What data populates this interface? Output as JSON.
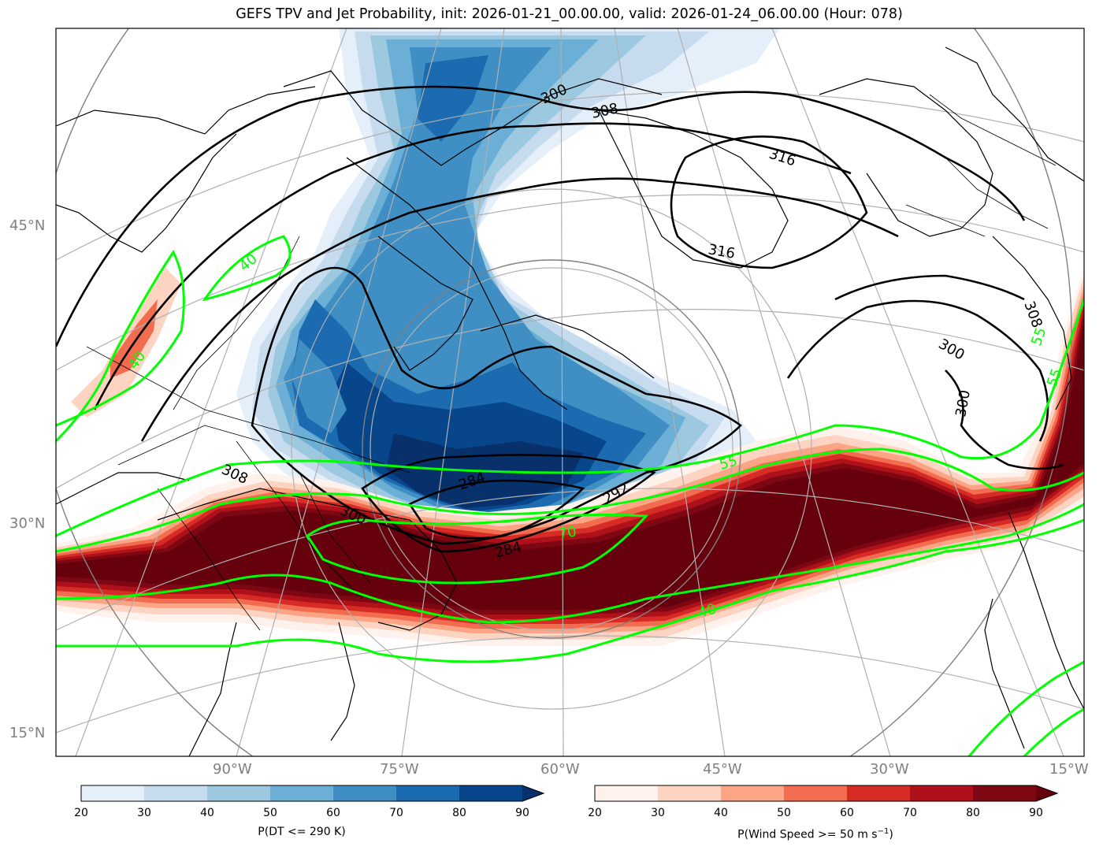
{
  "title": "GEFS TPV and Jet Probability, init: 2026-01-21_00.00.00, valid: 2026-01-24_06.00.00 (Hour: 078)",
  "lat_labels": [
    "45°N",
    "30°N",
    "15°N"
  ],
  "lon_labels": [
    "90°W",
    "75°W",
    "60°W",
    "45°W",
    "30°W",
    "15°W"
  ],
  "theta_contour_labels": [
    "300",
    "308",
    "316",
    "308",
    "300",
    "300",
    "308",
    "284",
    "292",
    "300",
    "284",
    "316"
  ],
  "wind_contour_labels": [
    "40",
    "40",
    "55",
    "70",
    "40",
    "55",
    "55"
  ],
  "colorbar_dt": {
    "label": "P(DT <= 290 K)",
    "ticks": [
      "20",
      "30",
      "40",
      "50",
      "60",
      "70",
      "80",
      "90"
    ],
    "colors": [
      "#e4eff9",
      "#c7dbef",
      "#9dc9e0",
      "#6baed6",
      "#3f8fc5",
      "#1c6aaf",
      "#08468b",
      "#08306b"
    ]
  },
  "colorbar_wind": {
    "label_main": "P(Wind Speed >= 50 m s",
    "label_sup": "−1",
    "label_end": ")",
    "ticks": [
      "20",
      "30",
      "40",
      "50",
      "60",
      "70",
      "80",
      "90"
    ],
    "colors": [
      "#fff1ec",
      "#fdd4c2",
      "#fca486",
      "#f26c4f",
      "#d72b26",
      "#ae1119",
      "#7d0712",
      "#67000d"
    ]
  }
}
